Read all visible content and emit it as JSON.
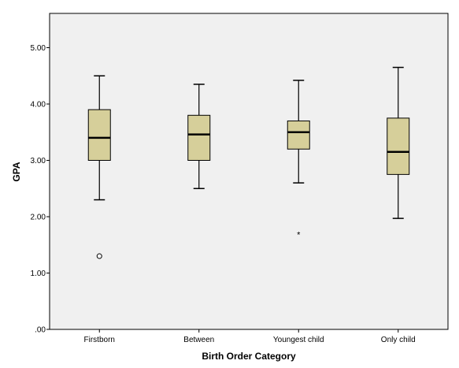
{
  "chart_data": {
    "type": "boxplot",
    "title": "",
    "xlabel": "Birth Order Category",
    "ylabel": "GPA",
    "ylim": [
      0,
      5.5
    ],
    "y_ticks": [
      {
        "value": 0,
        "label": ".00"
      },
      {
        "value": 1,
        "label": "1.00"
      },
      {
        "value": 2,
        "label": "2.00"
      },
      {
        "value": 3,
        "label": "3.00"
      },
      {
        "value": 4,
        "label": "4.00"
      },
      {
        "value": 5,
        "label": "5.00"
      }
    ],
    "grid": false,
    "colors": {
      "box_fill": "#d6cf9a",
      "plot_background": "#f0f0f0",
      "line": "#000000"
    },
    "categories": [
      "Firstborn",
      "Between",
      "Youngest child",
      "Only child"
    ],
    "boxes": [
      {
        "category": "Firstborn",
        "whisker_low": 2.3,
        "q1": 3.0,
        "median": 3.4,
        "q3": 3.9,
        "whisker_high": 4.5,
        "outliers": [
          {
            "value": 1.3,
            "marker": "circle"
          }
        ]
      },
      {
        "category": "Between",
        "whisker_low": 2.5,
        "q1": 3.0,
        "median": 3.46,
        "q3": 3.8,
        "whisker_high": 4.35,
        "outliers": []
      },
      {
        "category": "Youngest child",
        "whisker_low": 2.6,
        "q1": 3.2,
        "median": 3.5,
        "q3": 3.7,
        "whisker_high": 4.42,
        "outliers": [
          {
            "value": 1.7,
            "marker": "star"
          }
        ]
      },
      {
        "category": "Only child",
        "whisker_low": 1.97,
        "q1": 2.75,
        "median": 3.15,
        "q3": 3.75,
        "whisker_high": 4.65,
        "outliers": []
      }
    ]
  }
}
